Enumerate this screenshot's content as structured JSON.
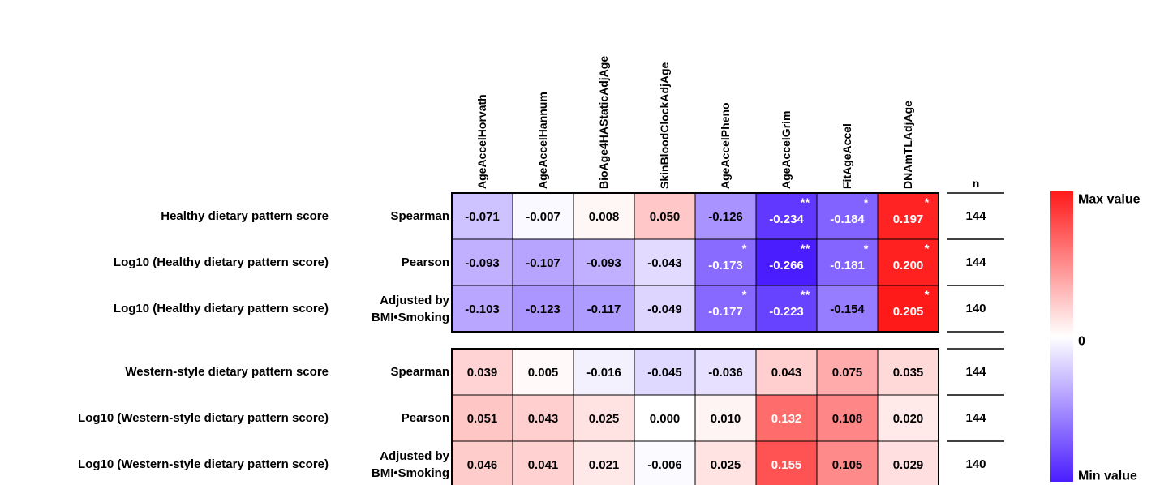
{
  "chart_data": {
    "type": "heatmap",
    "columns": [
      "AgeAccelHorvath",
      "AgeAccelHannum",
      "BioAge4HAStaticAdjAge",
      "SkinBloodClockAdjAge",
      "AgeAccelPheno",
      "AgeAccelGrim",
      "FitAgeAccel",
      "DNAmTLAdjAge"
    ],
    "n_header": "n",
    "groups": [
      {
        "rows": [
          {
            "label": "Healthy dietary pattern score",
            "method": [
              "Spearman"
            ],
            "n": "144",
            "values": [
              -0.071,
              -0.007,
              0.008,
              0.05,
              -0.126,
              -0.234,
              -0.184,
              0.197
            ],
            "text": [
              "-0.071",
              "-0.007",
              "0.008",
              "0.050",
              "-0.126",
              "-0.234",
              "-0.184",
              "0.197"
            ],
            "stars": [
              "",
              "",
              "",
              "",
              "",
              "**",
              "*",
              "*"
            ]
          },
          {
            "label": "Log10 (Healthy dietary pattern score)",
            "method": [
              "Pearson"
            ],
            "n": "144",
            "values": [
              -0.093,
              -0.107,
              -0.093,
              -0.043,
              -0.173,
              -0.266,
              -0.181,
              0.2
            ],
            "text": [
              "-0.093",
              "-0.107",
              "-0.093",
              "-0.043",
              "-0.173",
              "-0.266",
              "-0.181",
              "0.200"
            ],
            "stars": [
              "",
              "",
              "",
              "",
              "*",
              "**",
              "*",
              "*"
            ]
          },
          {
            "label": "Log10 (Healthy dietary pattern score)",
            "method": [
              "Adjusted by",
              "BMI•Smoking"
            ],
            "n": "140",
            "values": [
              -0.103,
              -0.123,
              -0.117,
              -0.049,
              -0.177,
              -0.223,
              -0.154,
              0.205
            ],
            "text": [
              "-0.103",
              "-0.123",
              "-0.117",
              "-0.049",
              "-0.177",
              "-0.223",
              "-0.154",
              "0.205"
            ],
            "stars": [
              "",
              "",
              "",
              "",
              "*",
              "**",
              "",
              "*"
            ]
          }
        ]
      },
      {
        "rows": [
          {
            "label": "Western-style dietary pattern score",
            "method": [
              "Spearman"
            ],
            "n": "144",
            "values": [
              0.039,
              0.005,
              -0.016,
              -0.045,
              -0.036,
              0.043,
              0.075,
              0.035
            ],
            "text": [
              "0.039",
              "0.005",
              "-0.016",
              "-0.045",
              "-0.036",
              "0.043",
              "0.075",
              "0.035"
            ],
            "stars": [
              "",
              "",
              "",
              "",
              "",
              "",
              "",
              ""
            ]
          },
          {
            "label": "Log10 (Western-style dietary pattern score)",
            "method": [
              "Pearson"
            ],
            "n": "144",
            "values": [
              0.051,
              0.043,
              0.025,
              0.0,
              0.01,
              0.132,
              0.108,
              0.02
            ],
            "text": [
              "0.051",
              "0.043",
              "0.025",
              "0.000",
              "0.010",
              "0.132",
              "0.108",
              "0.020"
            ],
            "stars": [
              "",
              "",
              "",
              "",
              "",
              "",
              "",
              ""
            ]
          },
          {
            "label": "Log10 (Western-style dietary pattern score)",
            "method": [
              "Adjusted by",
              "BMI•Smoking"
            ],
            "n": "140",
            "values": [
              0.046,
              0.041,
              0.021,
              -0.006,
              0.025,
              0.155,
              0.105,
              0.029
            ],
            "text": [
              "0.046",
              "0.041",
              "0.021",
              "-0.006",
              "0.025",
              "0.155",
              "0.105",
              "0.029"
            ],
            "stars": [
              "",
              "",
              "",
              "",
              "",
              "",
              "",
              ""
            ]
          }
        ]
      }
    ],
    "color_scale": {
      "min": -0.266,
      "mid": 0,
      "max": 0.205,
      "min_color": "#4a1dff",
      "mid_color": "#ffffff",
      "max_color": "#ff1a1a"
    },
    "legend": {
      "max_label": "Max value",
      "mid_label": "0",
      "min_label": "Min value",
      "placement": "right"
    }
  }
}
